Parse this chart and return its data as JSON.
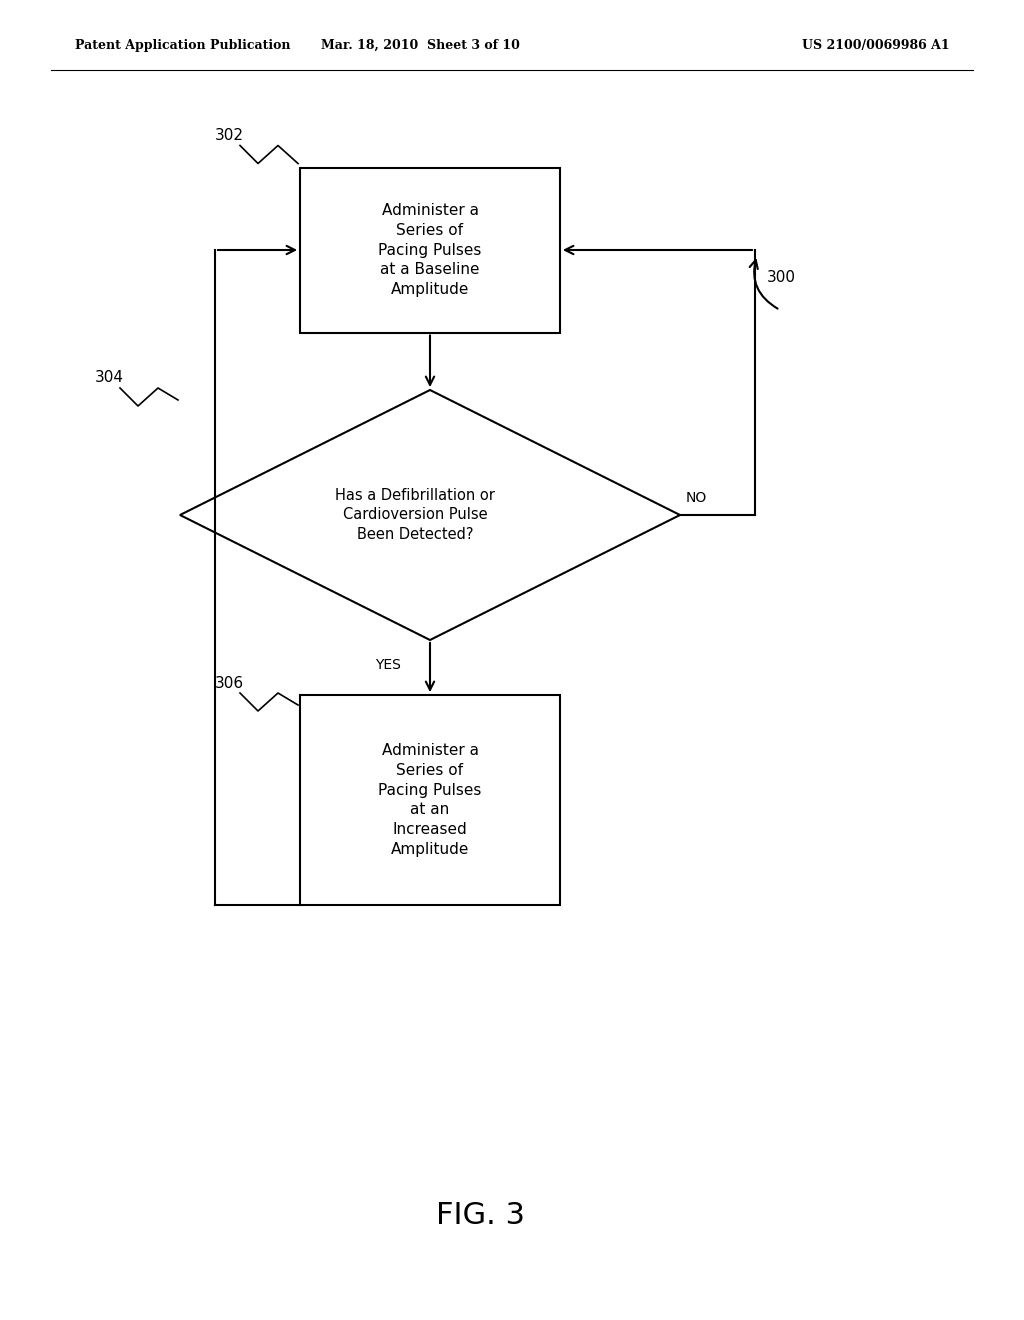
{
  "bg_color": "#ffffff",
  "header_left": "Patent Application Publication",
  "header_mid": "Mar. 18, 2010  Sheet 3 of 10",
  "header_right": "US 2100/0069986 A1",
  "fig_label": "FIG. 3",
  "box1_text": "Administer a\nSeries of\nPacing Pulses\nat a Baseline\nAmplitude",
  "box1_label": "302",
  "diamond_text": "Has a Defibrillation or\nCardioversion Pulse\nBeen Detected?",
  "diamond_label": "304",
  "box2_text": "Administer a\nSeries of\nPacing Pulses\nat an\nIncreased\nAmplitude",
  "box2_label": "306",
  "loop_label": "300",
  "no_label": "NO",
  "yes_label": "YES",
  "line_color": "#000000",
  "text_color": "#000000",
  "font_size_header": 9,
  "font_size_box": 11,
  "font_size_label": 11,
  "font_size_fig": 22
}
